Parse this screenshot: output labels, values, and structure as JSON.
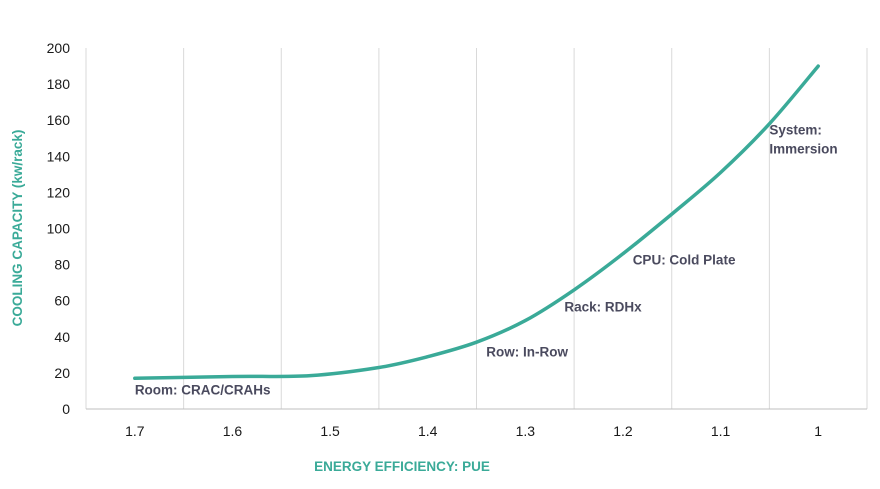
{
  "chart_data": {
    "type": "line",
    "title": "",
    "xlabel": "ENERGY EFFICIENCY:  PUE",
    "ylabel": "COOLING CAPACITY (kw/rack)",
    "x_reversed": true,
    "xlim": [
      1.75,
      0.95
    ],
    "ylim": [
      0,
      200
    ],
    "x_ticks": [
      "1.7",
      "1.6",
      "1.5",
      "1.4",
      "1.3",
      "1.2",
      "1.1",
      "1"
    ],
    "y_ticks": [
      "0",
      "20",
      "40",
      "60",
      "80",
      "100",
      "120",
      "140",
      "160",
      "180",
      "200"
    ],
    "grid": "vertical",
    "series": [
      {
        "color": "#3aaa98",
        "x": [
          1.7,
          1.6,
          1.52,
          1.45,
          1.4,
          1.35,
          1.3,
          1.25,
          1.2,
          1.15,
          1.1,
          1.05,
          1.0
        ],
        "y": [
          17,
          18,
          18.5,
          23,
          29,
          37,
          49,
          66,
          86,
          108,
          131,
          158,
          190
        ]
      }
    ],
    "annotations": [
      {
        "text": "Room: CRAC/CRAHs",
        "x": 1.7,
        "y": 8,
        "lines": [
          "Room: CRAC/CRAHs"
        ]
      },
      {
        "text": "Row: In-Row",
        "x": 1.34,
        "y": 29,
        "lines": [
          "Row: In-Row"
        ]
      },
      {
        "text": "Rack: RDHx",
        "x": 1.26,
        "y": 54,
        "lines": [
          "Rack: RDHx"
        ]
      },
      {
        "text": "CPU: Cold Plate",
        "x": 1.19,
        "y": 80,
        "lines": [
          "CPU: Cold Plate"
        ]
      },
      {
        "text": "System: Immersion",
        "x": 1.05,
        "y": 152,
        "lines": [
          "System:",
          "Immersion"
        ]
      }
    ],
    "colors": {
      "line": "#3aaa98",
      "axis_title": "#3aaa98",
      "grid": "#d9d9d9",
      "annotation": "#4a4a5e"
    }
  }
}
